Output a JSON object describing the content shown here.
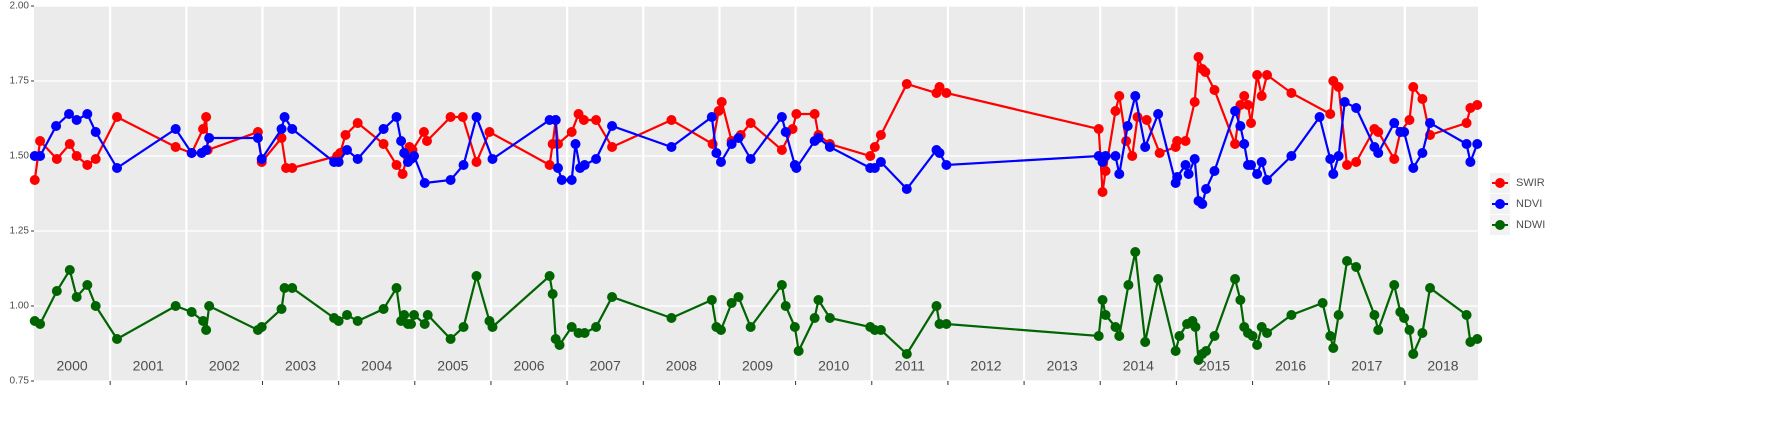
{
  "chart_data": {
    "type": "line",
    "xlim": [
      2000,
      2018.96
    ],
    "ylim": [
      0.75,
      2.0
    ],
    "yticks": [
      0.75,
      {
        "value": 1,
        "label": "1.00"
      },
      1.25,
      {
        "value": 1.5,
        "label": "1.50"
      },
      1.75,
      {
        "value": 2,
        "label": "2.00"
      }
    ],
    "xticks": [
      {
        "value": 2000.5,
        "label": "2000"
      },
      {
        "value": 2001.5,
        "label": "2001"
      },
      {
        "value": 2002.5,
        "label": "2002"
      },
      {
        "value": 2003.5,
        "label": "2003"
      },
      {
        "value": 2004.5,
        "label": "2004"
      },
      {
        "value": 2005.5,
        "label": "2005"
      },
      {
        "value": 2006.5,
        "label": "2006"
      },
      {
        "value": 2007.5,
        "label": "2007"
      },
      {
        "value": 2008.5,
        "label": "2008"
      },
      {
        "value": 2009.5,
        "label": "2009"
      },
      {
        "value": 2010.5,
        "label": "2010"
      },
      {
        "value": 2011.5,
        "label": "2011"
      },
      {
        "value": 2012.5,
        "label": "2012"
      },
      {
        "value": 2013.5,
        "label": "2013"
      },
      {
        "value": 2014.5,
        "label": "2014"
      },
      {
        "value": 2015.5,
        "label": "2015"
      },
      {
        "value": 2016.5,
        "label": "2016"
      },
      {
        "value": 2017.5,
        "label": "2017"
      },
      {
        "value": 2018.5,
        "label": "2018"
      }
    ],
    "xgrid": [
      2001,
      2002,
      2003,
      2004,
      2005,
      2006,
      2007,
      2008,
      2009,
      2010,
      2011,
      2012,
      2013,
      2014,
      2015,
      2016,
      2017,
      2018
    ],
    "grid": true,
    "legend": "right",
    "series": [
      {
        "name": "SWIR",
        "color": "#ff0000",
        "x": [
          2000.01,
          2000.08,
          2000.3,
          2000.47,
          2000.56,
          2000.7,
          2000.81,
          2001.09,
          2001.86,
          2002.07,
          2002.22,
          2002.26,
          2002.28,
          2002.94,
          2002.99,
          2003.25,
          2003.31,
          2003.39,
          2003.98,
          2004.02,
          2004.09,
          2004.25,
          2004.59,
          2004.76,
          2004.84,
          2004.9,
          2004.93,
          2004.97,
          2005.12,
          2005.16,
          2005.47,
          2005.63,
          2005.81,
          2005.98,
          2006.77,
          2006.81,
          2006.85,
          2006.88,
          2007.06,
          2007.15,
          2007.22,
          2007.38,
          2007.59,
          2008.37,
          2008.91,
          2008.99,
          2009.03,
          2009.16,
          2009.28,
          2009.41,
          2009.82,
          2009.96,
          2010.01,
          2010.25,
          2010.3,
          2010.45,
          2010.98,
          2011.04,
          2011.12,
          2011.46,
          2011.85,
          2011.89,
          2011.98,
          2013.98,
          2014.03,
          2014.07,
          2014.2,
          2014.25,
          2014.34,
          2014.42,
          2014.49,
          2014.61,
          2014.78,
          2014.99,
          2015.01,
          2015.12,
          2015.24,
          2015.29,
          2015.34,
          2015.38,
          2015.5,
          2015.77,
          2015.84,
          2015.89,
          2015.94,
          2015.98,
          2016.06,
          2016.12,
          2016.19,
          2016.51,
          2017.02,
          2017.06,
          2017.13,
          2017.24,
          2017.36,
          2017.6,
          2017.65,
          2017.86,
          2017.94,
          2018.06,
          2018.11,
          2018.23,
          2018.33,
          2018.81,
          2018.86,
          2018.95
        ],
        "values": [
          1.42,
          1.55,
          1.49,
          1.54,
          1.5,
          1.47,
          1.49,
          1.63,
          1.53,
          1.51,
          1.59,
          1.63,
          1.52,
          1.58,
          1.48,
          1.56,
          1.46,
          1.46,
          1.5,
          1.51,
          1.57,
          1.61,
          1.54,
          1.47,
          1.44,
          1.5,
          1.53,
          1.52,
          1.58,
          1.55,
          1.63,
          1.63,
          1.48,
          1.58,
          1.47,
          1.54,
          1.62,
          1.54,
          1.58,
          1.64,
          1.62,
          1.62,
          1.53,
          1.62,
          1.54,
          1.65,
          1.68,
          1.55,
          1.57,
          1.61,
          1.52,
          1.59,
          1.64,
          1.64,
          1.57,
          1.54,
          1.5,
          1.53,
          1.57,
          1.74,
          1.71,
          1.73,
          1.71,
          1.59,
          1.38,
          1.45,
          1.65,
          1.7,
          1.55,
          1.5,
          1.63,
          1.62,
          1.51,
          1.53,
          1.55,
          1.55,
          1.68,
          1.83,
          1.79,
          1.78,
          1.72,
          1.54,
          1.67,
          1.7,
          1.67,
          1.61,
          1.77,
          1.7,
          1.77,
          1.71,
          1.64,
          1.75,
          1.73,
          1.47,
          1.48,
          1.59,
          1.58,
          1.49,
          1.58,
          1.62,
          1.73,
          1.69,
          1.57,
          1.61,
          1.66,
          1.67
        ]
      },
      {
        "name": "NDVI",
        "color": "#0000ff",
        "x": [
          2000.01,
          2000.08,
          2000.29,
          2000.46,
          2000.56,
          2000.7,
          2000.81,
          2001.09,
          2001.86,
          2002.07,
          2002.2,
          2002.26,
          2002.3,
          2002.94,
          2002.99,
          2003.25,
          2003.29,
          2003.39,
          2003.94,
          2004.0,
          2004.11,
          2004.25,
          2004.59,
          2004.76,
          2004.82,
          2004.86,
          2004.91,
          2004.95,
          2004.99,
          2005.13,
          2005.47,
          2005.64,
          2005.81,
          2006.02,
          2006.77,
          2006.85,
          2006.88,
          2006.93,
          2007.06,
          2007.11,
          2007.17,
          2007.23,
          2007.38,
          2007.59,
          2008.37,
          2008.9,
          2008.96,
          2009.02,
          2009.16,
          2009.25,
          2009.41,
          2009.82,
          2009.87,
          2009.99,
          2010.01,
          2010.25,
          2010.3,
          2010.45,
          2010.98,
          2011.04,
          2011.12,
          2011.46,
          2011.85,
          2011.89,
          2011.98,
          2013.98,
          2014.03,
          2014.07,
          2014.2,
          2014.25,
          2014.36,
          2014.46,
          2014.59,
          2014.76,
          2014.99,
          2015.01,
          2015.12,
          2015.16,
          2015.24,
          2015.29,
          2015.34,
          2015.39,
          2015.5,
          2015.77,
          2015.84,
          2015.89,
          2015.94,
          2015.98,
          2016.06,
          2016.12,
          2016.19,
          2016.51,
          2016.88,
          2017.02,
          2017.06,
          2017.13,
          2017.21,
          2017.36,
          2017.6,
          2017.65,
          2017.86,
          2017.94,
          2017.99,
          2018.11,
          2018.23,
          2018.33,
          2018.81,
          2018.86,
          2018.95
        ],
        "values": [
          1.5,
          1.5,
          1.6,
          1.64,
          1.62,
          1.64,
          1.58,
          1.46,
          1.59,
          1.51,
          1.51,
          1.52,
          1.56,
          1.56,
          1.49,
          1.59,
          1.63,
          1.59,
          1.48,
          1.48,
          1.52,
          1.49,
          1.59,
          1.63,
          1.55,
          1.51,
          1.48,
          1.49,
          1.5,
          1.41,
          1.42,
          1.47,
          1.63,
          1.49,
          1.62,
          1.62,
          1.46,
          1.42,
          1.42,
          1.54,
          1.46,
          1.47,
          1.49,
          1.6,
          1.53,
          1.63,
          1.51,
          1.48,
          1.54,
          1.56,
          1.49,
          1.63,
          1.58,
          1.47,
          1.46,
          1.55,
          1.56,
          1.53,
          1.46,
          1.46,
          1.48,
          1.39,
          1.52,
          1.51,
          1.47,
          1.5,
          1.48,
          1.5,
          1.5,
          1.44,
          1.6,
          1.7,
          1.53,
          1.64,
          1.41,
          1.43,
          1.47,
          1.44,
          1.49,
          1.35,
          1.34,
          1.39,
          1.45,
          1.65,
          1.6,
          1.54,
          1.47,
          1.47,
          1.44,
          1.48,
          1.42,
          1.5,
          1.63,
          1.49,
          1.44,
          1.5,
          1.68,
          1.66,
          1.53,
          1.51,
          1.61,
          1.58,
          1.58,
          1.46,
          1.51,
          1.61,
          1.54,
          1.48,
          1.54
        ]
      },
      {
        "name": "NDWI",
        "color": "#006400",
        "x": [
          2000.01,
          2000.08,
          2000.3,
          2000.47,
          2000.56,
          2000.7,
          2000.81,
          2001.09,
          2001.86,
          2002.07,
          2002.22,
          2002.26,
          2002.3,
          2002.94,
          2002.99,
          2003.25,
          2003.29,
          2003.39,
          2003.94,
          2004.0,
          2004.11,
          2004.25,
          2004.59,
          2004.76,
          2004.82,
          2004.86,
          2004.91,
          2004.95,
          2004.99,
          2005.13,
          2005.17,
          2005.47,
          2005.64,
          2005.81,
          2005.98,
          2006.02,
          2006.77,
          2006.81,
          2006.85,
          2006.9,
          2007.06,
          2007.15,
          2007.23,
          2007.38,
          2007.59,
          2008.37,
          2008.9,
          2008.96,
          2009.02,
          2009.16,
          2009.25,
          2009.41,
          2009.82,
          2009.87,
          2009.99,
          2010.04,
          2010.25,
          2010.3,
          2010.45,
          2010.98,
          2011.04,
          2011.12,
          2011.46,
          2011.85,
          2011.89,
          2011.98,
          2013.98,
          2014.03,
          2014.07,
          2014.2,
          2014.25,
          2014.37,
          2014.46,
          2014.59,
          2014.76,
          2014.99,
          2015.04,
          2015.14,
          2015.21,
          2015.25,
          2015.29,
          2015.34,
          2015.39,
          2015.5,
          2015.77,
          2015.84,
          2015.89,
          2015.94,
          2016.0,
          2016.06,
          2016.12,
          2016.19,
          2016.51,
          2016.92,
          2017.02,
          2017.06,
          2017.13,
          2017.24,
          2017.36,
          2017.6,
          2017.65,
          2017.86,
          2017.94,
          2017.99,
          2018.06,
          2018.11,
          2018.23,
          2018.33,
          2018.81,
          2018.86,
          2018.95
        ],
        "values": [
          0.95,
          0.94,
          1.05,
          1.12,
          1.03,
          1.07,
          1.0,
          0.89,
          1.0,
          0.98,
          0.95,
          0.92,
          1.0,
          0.92,
          0.93,
          0.99,
          1.06,
          1.06,
          0.96,
          0.95,
          0.97,
          0.95,
          0.99,
          1.06,
          0.95,
          0.97,
          0.94,
          0.94,
          0.97,
          0.94,
          0.97,
          0.89,
          0.93,
          1.1,
          0.95,
          0.93,
          1.1,
          1.04,
          0.89,
          0.87,
          0.93,
          0.91,
          0.91,
          0.93,
          1.03,
          0.96,
          1.02,
          0.93,
          0.92,
          1.01,
          1.03,
          0.93,
          1.07,
          1.0,
          0.93,
          0.85,
          0.96,
          1.02,
          0.96,
          0.93,
          0.92,
          0.92,
          0.84,
          1.0,
          0.94,
          0.94,
          0.9,
          1.02,
          0.97,
          0.93,
          0.9,
          1.07,
          1.18,
          0.88,
          1.09,
          0.85,
          0.9,
          0.94,
          0.95,
          0.93,
          0.82,
          0.84,
          0.85,
          0.9,
          1.09,
          1.02,
          0.93,
          0.91,
          0.9,
          0.87,
          0.93,
          0.91,
          0.97,
          1.01,
          0.9,
          0.86,
          0.97,
          1.15,
          1.13,
          0.97,
          0.92,
          1.07,
          0.98,
          0.96,
          0.92,
          0.84,
          0.91,
          1.06,
          0.97,
          0.88,
          0.89
        ]
      }
    ]
  }
}
